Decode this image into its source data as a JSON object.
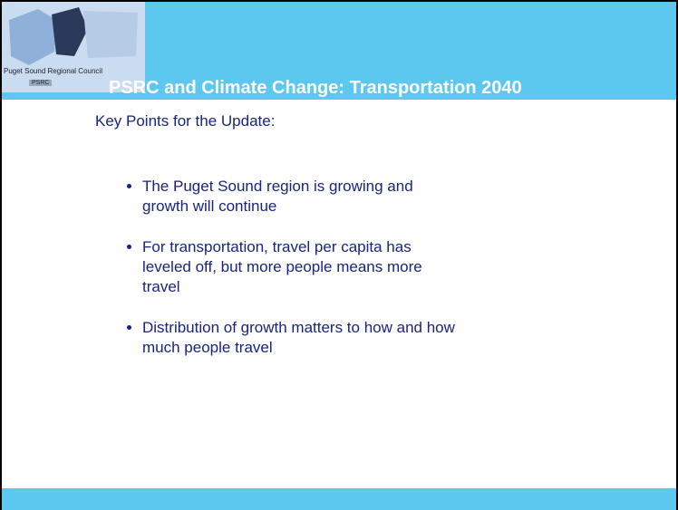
{
  "header": {
    "logo_text": "Puget Sound Regional Council",
    "logo_badge": "PSRC",
    "title": "PSRC and Climate Change: Transportation 2040"
  },
  "subtitle": "Key Points for the Update:",
  "bullets": [
    [
      "The Puget Sound region is growing and",
      "growth will continue"
    ],
    [
      "For transportation, travel per capita has",
      "leveled off, but more people means more",
      "travel"
    ],
    [
      "Distribution of growth matters to how and how",
      "much people travel"
    ]
  ]
}
